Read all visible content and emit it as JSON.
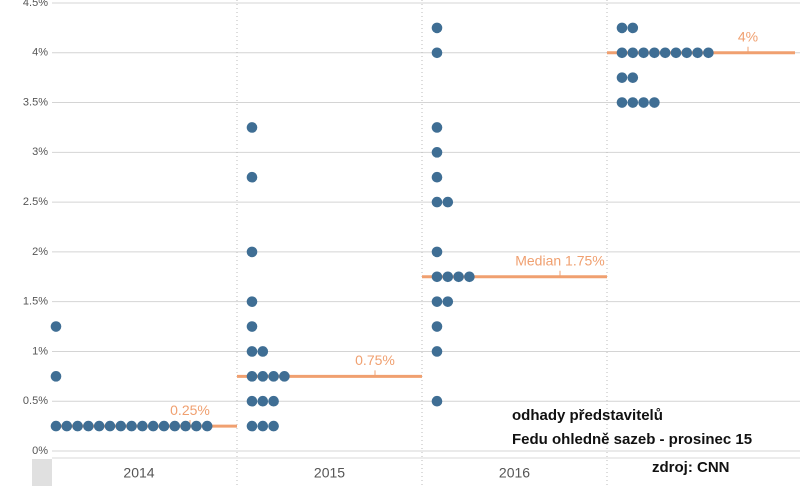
{
  "chart_data": {
    "type": "dot",
    "categories": [
      "2014",
      "2015",
      "2016",
      null
    ],
    "dots": [
      [
        0.25,
        0.25,
        0.25,
        0.25,
        0.25,
        0.25,
        0.25,
        0.25,
        0.25,
        0.25,
        0.25,
        0.25,
        0.25,
        0.25,
        0.25,
        0.75,
        1.25
      ],
      [
        3.25,
        2.75,
        2,
        1.5,
        1.25,
        1,
        1,
        0.75,
        0.75,
        0.75,
        0.75,
        0.5,
        0.5,
        0.5,
        0.25,
        0.25,
        0.25
      ],
      [
        4.25,
        4,
        3.25,
        3,
        2.75,
        2.5,
        2.5,
        2,
        1.75,
        1.75,
        1.75,
        1.75,
        1.5,
        1.5,
        1.25,
        1,
        0.5
      ],
      [
        4.25,
        4.25,
        4,
        4,
        4,
        4,
        4,
        4,
        4,
        4,
        4,
        3.75,
        3.75,
        3.5,
        3.5,
        3.5,
        3.5
      ]
    ],
    "dot_color": "#3f6e94",
    "medians": [
      0.25,
      0.75,
      1.75,
      4
    ],
    "median_labels": [
      "0.25%",
      "0.75%",
      "Median 1.75%",
      "4%"
    ],
    "median_color": "#f0a070",
    "ylim": [
      0,
      4.5
    ],
    "yticks": [
      {
        "value": 0,
        "label": "0%"
      },
      {
        "value": 0.5,
        "label": "0.5%"
      },
      {
        "value": 1,
        "label": "1%"
      },
      {
        "value": 1.5,
        "label": "1.5%"
      },
      {
        "value": 2,
        "label": "2%"
      },
      {
        "value": 2.5,
        "label": "2.5%"
      },
      {
        "value": 3,
        "label": "3%"
      },
      {
        "value": 3.5,
        "label": "3.5%"
      },
      {
        "value": 4,
        "label": "4%"
      },
      {
        "value": 4.5,
        "label": "4.5%"
      }
    ],
    "grid": true,
    "annotations": [
      "odhady představitelů",
      "Fedu ohledně sazeb - prosinec 15",
      "zdroj: CNN"
    ]
  }
}
